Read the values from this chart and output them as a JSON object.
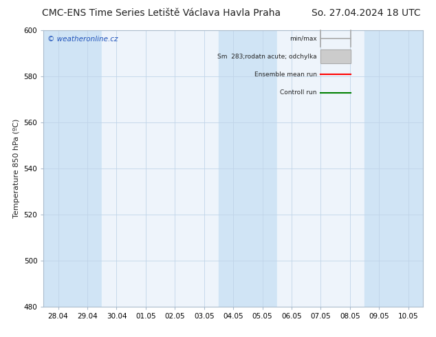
{
  "title_left": "CMC-ENS Time Series Letiště Václava Havla Praha",
  "title_right": "So. 27.04.2024 18 UTC",
  "ylabel": "Temperature 850 hPa (ºC)",
  "watermark": "© weatheronline.cz",
  "ylim": [
    480,
    600
  ],
  "yticks": [
    480,
    500,
    520,
    540,
    560,
    580,
    600
  ],
  "x_labels": [
    "28.04",
    "29.04",
    "30.04",
    "01.05",
    "02.05",
    "03.05",
    "04.05",
    "05.05",
    "06.05",
    "07.05",
    "08.05",
    "09.05",
    "10.05"
  ],
  "bg_color": "#ffffff",
  "plot_bg": "#eef4fb",
  "band_color": "#d0e4f5",
  "legend_entries": [
    "min/max",
    "Sm  283;rodatn acute; odchylka",
    "Ensemble mean run",
    "Controll run"
  ],
  "legend_colors": [
    "#aaaaaa",
    "#cccccc",
    "#ff0000",
    "#008000"
  ],
  "title_fontsize": 10,
  "label_fontsize": 8,
  "tick_fontsize": 7.5,
  "watermark_color": "#2255bb",
  "grid_color": "#c0d4e8",
  "n_columns": 13,
  "highlight_cols": [
    0,
    1,
    6,
    7,
    11,
    12
  ]
}
